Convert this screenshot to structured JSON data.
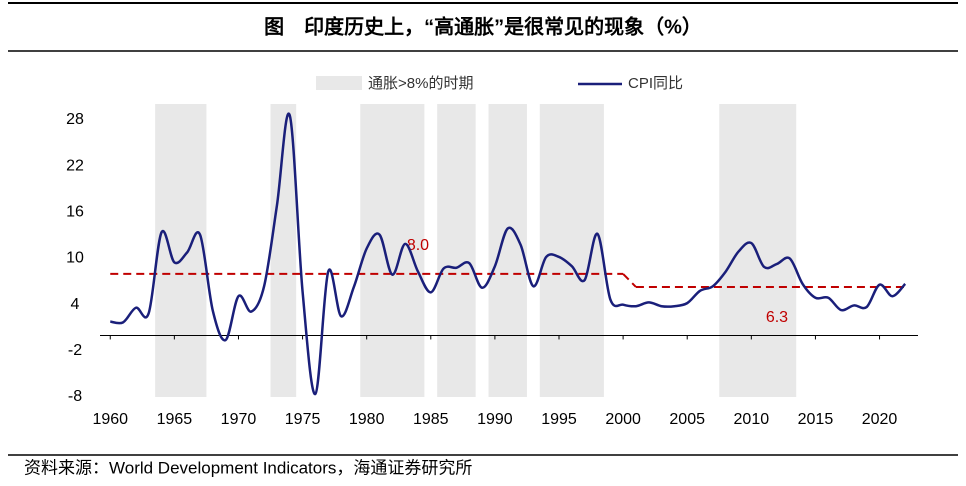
{
  "chart_data": {
    "type": "line",
    "title": "图　印度历史上，“高通胀”是很常见的现象（%）",
    "source": "资料来源：World Development Indicators，海通证券研究所",
    "shade_label": "通胀>8%的时期",
    "shade_color": "#e8e8e8",
    "shaded_periods": [
      [
        1964,
        1967
      ],
      [
        1973,
        1974
      ],
      [
        1980,
        1984
      ],
      [
        1986,
        1988
      ],
      [
        1990,
        1992
      ],
      [
        1994,
        1998
      ],
      [
        2008,
        2013
      ]
    ],
    "x": [
      1960,
      1961,
      1962,
      1963,
      1964,
      1965,
      1966,
      1967,
      1968,
      1969,
      1970,
      1971,
      1972,
      1973,
      1974,
      1975,
      1976,
      1977,
      1978,
      1979,
      1980,
      1981,
      1982,
      1983,
      1984,
      1985,
      1986,
      1987,
      1988,
      1989,
      1990,
      1991,
      1992,
      1993,
      1994,
      1995,
      1996,
      1997,
      1998,
      1999,
      2000,
      2001,
      2002,
      2003,
      2004,
      2005,
      2006,
      2007,
      2008,
      2009,
      2010,
      2011,
      2012,
      2013,
      2014,
      2015,
      2016,
      2017,
      2018,
      2019,
      2020,
      2021,
      2022
    ],
    "series": [
      {
        "name": "CPI同比",
        "color": "#1a1f7a",
        "values": [
          1.8,
          1.7,
          3.6,
          2.9,
          13.4,
          9.5,
          10.8,
          13.1,
          3.2,
          -0.6,
          5.1,
          3.1,
          6.4,
          16.9,
          28.6,
          5.7,
          -7.6,
          8.3,
          2.5,
          6.3,
          11.3,
          13.1,
          7.9,
          11.9,
          8.3,
          5.6,
          8.7,
          8.8,
          9.4,
          6.2,
          9.0,
          13.9,
          11.8,
          6.4,
          10.2,
          10.2,
          9.0,
          7.2,
          13.2,
          4.7,
          4.0,
          3.8,
          4.3,
          3.8,
          3.8,
          4.2,
          5.8,
          6.4,
          8.3,
          10.9,
          12.0,
          8.9,
          9.3,
          10.0,
          6.7,
          4.9,
          4.9,
          3.3,
          3.9,
          3.7,
          6.6,
          5.1,
          6.7
        ]
      }
    ],
    "reference_lines": [
      {
        "value": 8.0,
        "label": "8.0",
        "start": 1960,
        "end": 2000
      },
      {
        "value": 6.3,
        "label": "6.3",
        "start": 2001,
        "end": 2022
      }
    ],
    "reference_color": "#c00000",
    "xlim": [
      1959.2,
      2023
    ],
    "xticks": [
      1960,
      1965,
      1970,
      1975,
      1980,
      1985,
      1990,
      1995,
      2000,
      2005,
      2010,
      2015,
      2020
    ],
    "ylim": [
      -8,
      28
    ],
    "yticks": [
      -8,
      -2,
      4,
      10,
      16,
      22,
      28
    ]
  }
}
